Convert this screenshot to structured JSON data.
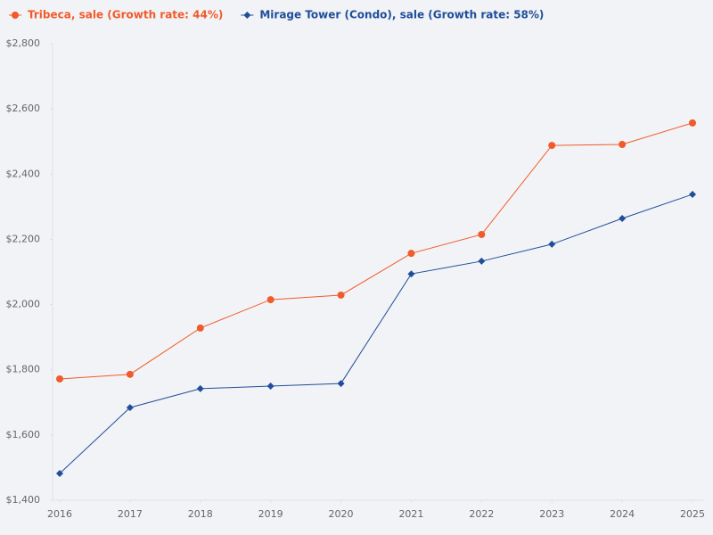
{
  "chart_data": {
    "type": "line",
    "x": [
      2016,
      2017,
      2018,
      2019,
      2020,
      2021,
      2022,
      2023,
      2024,
      2025
    ],
    "xlim": [
      2016,
      2025
    ],
    "xticks": [
      2016,
      2017,
      2018,
      2019,
      2020,
      2021,
      2022,
      2023,
      2024,
      2025
    ],
    "ylim": [
      1400,
      2800
    ],
    "yticks": [
      {
        "value": 1400,
        "label": "$1,400"
      },
      {
        "value": 1600,
        "label": "$1,600"
      },
      {
        "value": 1800,
        "label": "$1,800"
      },
      {
        "value": 2000,
        "label": "$2,000"
      },
      {
        "value": 2200,
        "label": "$2,200"
      },
      {
        "value": 2400,
        "label": "$2,400"
      },
      {
        "value": 2600,
        "label": "$2,600"
      },
      {
        "value": 2800,
        "label": "$2,800"
      }
    ],
    "legend": "top-left",
    "series": [
      {
        "name": "Tribeca, sale (Growth rate: 44%)",
        "color": "#f15a2b",
        "marker": "circle",
        "values": [
          1772,
          1786,
          1928,
          2015,
          2029,
          2157,
          2215,
          2488,
          2491,
          2557
        ]
      },
      {
        "name": "Mirage Tower (Condo), sale (Growth rate: 58%)",
        "color": "#1f4e9a",
        "marker": "diamond",
        "values": [
          1482,
          1684,
          1742,
          1750,
          1758,
          2094,
          2133,
          2185,
          2264,
          2338
        ]
      }
    ]
  }
}
